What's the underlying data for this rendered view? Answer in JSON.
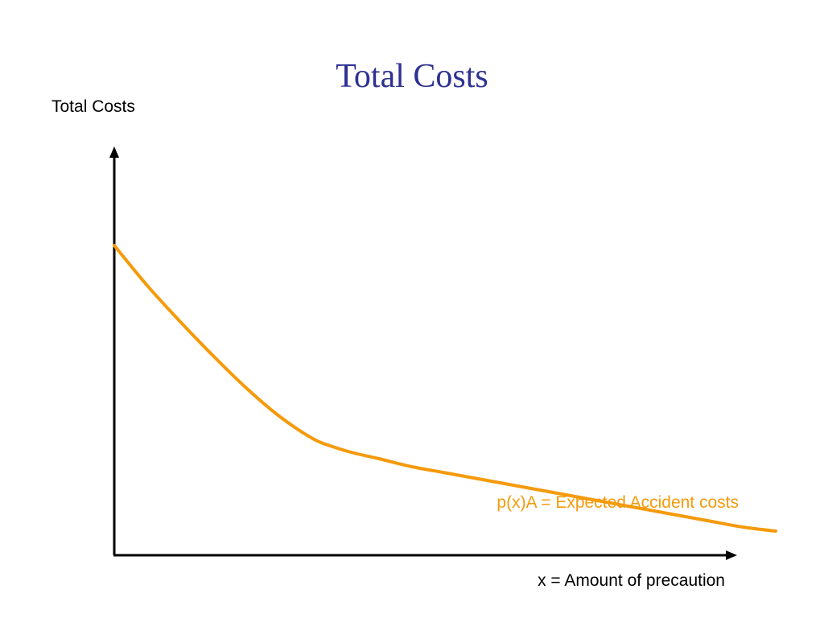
{
  "page": {
    "title": "Total Costs"
  },
  "colors": {
    "title": "#2e3192",
    "axis": "#000000",
    "curve": "#f59a0b"
  },
  "chart_data": {
    "type": "line",
    "title": "Total Costs",
    "ylabel": "Total Costs",
    "xlabel": "x = Amount of precaution",
    "xlim": [
      0,
      100
    ],
    "ylim": [
      0,
      100
    ],
    "grid": false,
    "series": [
      {
        "name": "p(x)A = Expected Accident costs",
        "color": "#f59a0b",
        "x": [
          0,
          5,
          10,
          15,
          20,
          25,
          30,
          33,
          36,
          40,
          45,
          50,
          55,
          60,
          65,
          70,
          75,
          80,
          85,
          90,
          95,
          100
        ],
        "y": [
          77,
          67,
          58,
          49.5,
          41.5,
          34.5,
          29,
          27,
          25.5,
          24,
          22,
          20.5,
          19,
          17.5,
          16,
          14.5,
          13,
          11.5,
          10,
          8.5,
          7,
          6
        ]
      }
    ]
  }
}
